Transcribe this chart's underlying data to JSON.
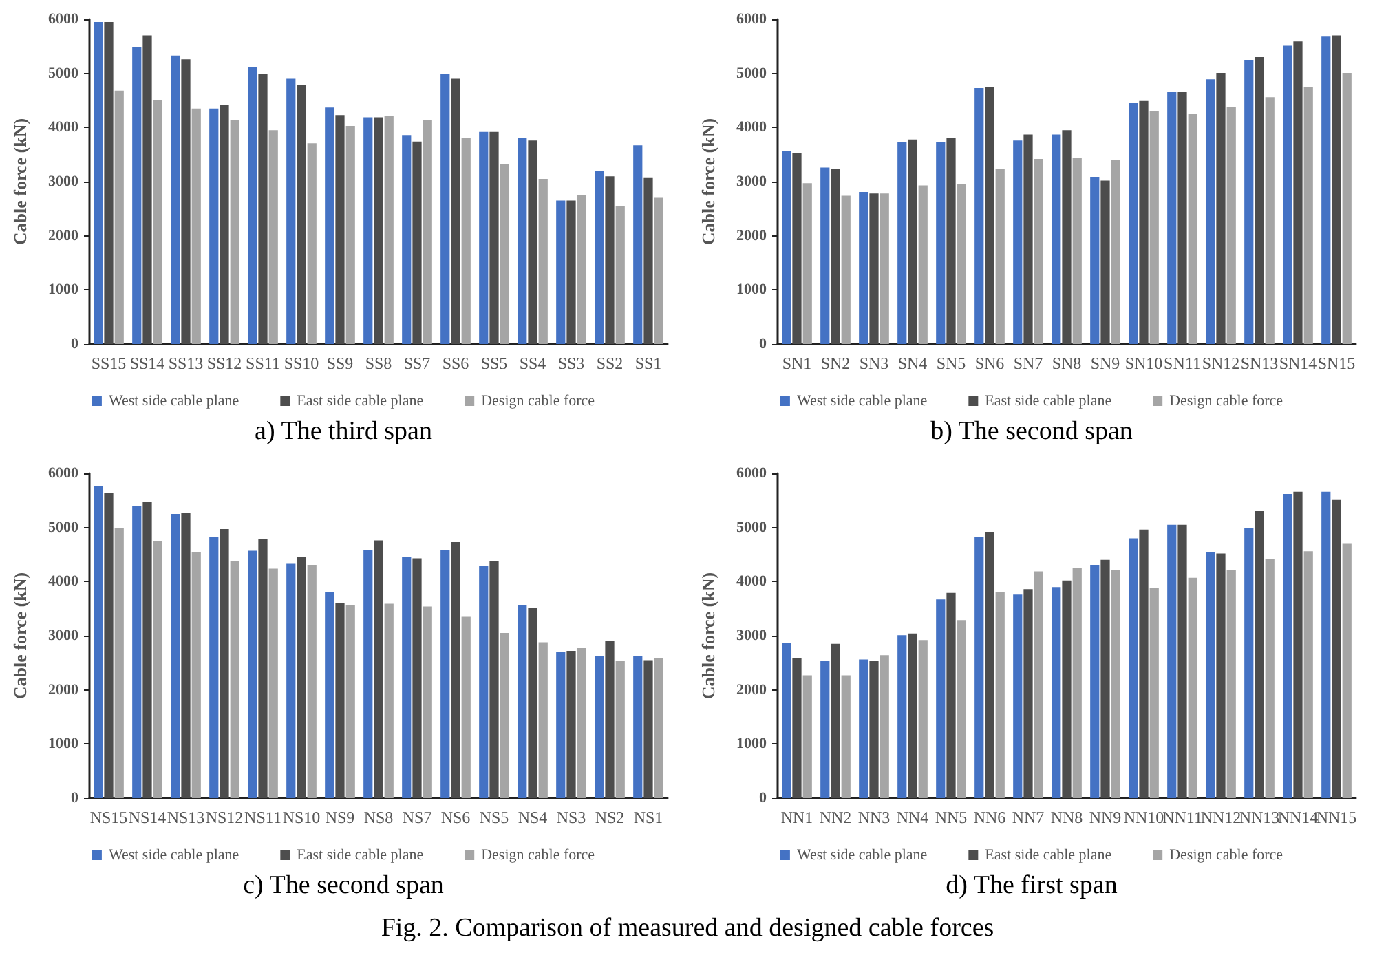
{
  "chart_data": [
    {
      "type": "bar",
      "title": "a) The third span",
      "ylabel": "Cable force (kN)",
      "categories": [
        "SS15",
        "SS14",
        "SS13",
        "SS12",
        "SS11",
        "SS10",
        "SS9",
        "SS8",
        "SS7",
        "SS6",
        "SS5",
        "SS4",
        "SS3",
        "SS2",
        "SS1"
      ],
      "ylim": [
        0,
        6000
      ],
      "yticks": [
        0,
        1000,
        2000,
        3000,
        4000,
        5000,
        6000
      ],
      "legend": "bottom",
      "series": [
        {
          "name": "West side cable plane",
          "color": "#4472c4",
          "values": [
            5950,
            5490,
            5330,
            4350,
            5110,
            4900,
            4370,
            4190,
            3860,
            4990,
            3920,
            3810,
            2650,
            3190,
            3670
          ]
        },
        {
          "name": "East side cable plane",
          "color": "#4d4d4d",
          "values": [
            5950,
            5700,
            5260,
            4420,
            4990,
            4780,
            4230,
            4190,
            3740,
            4900,
            3920,
            3760,
            2650,
            3100,
            3080
          ]
        },
        {
          "name": "Design cable force",
          "color": "#a5a5a5",
          "values": [
            4680,
            4510,
            4350,
            4140,
            3950,
            3710,
            4030,
            4210,
            4140,
            3810,
            3320,
            3050,
            2750,
            2550,
            2700
          ]
        }
      ]
    },
    {
      "type": "bar",
      "title": "b) The second span",
      "ylabel": "Cable force (kN)",
      "categories": [
        "SN1",
        "SN2",
        "SN3",
        "SN4",
        "SN5",
        "SN6",
        "SN7",
        "SN8",
        "SN9",
        "SN10",
        "SN11",
        "SN12",
        "SN13",
        "SN14",
        "SN15"
      ],
      "ylim": [
        0,
        6000
      ],
      "yticks": [
        0,
        1000,
        2000,
        3000,
        4000,
        5000,
        6000
      ],
      "legend": "bottom",
      "series": [
        {
          "name": "West side cable plane",
          "color": "#4472c4",
          "values": [
            3570,
            3260,
            2810,
            3730,
            3730,
            4730,
            3760,
            3870,
            3090,
            4450,
            4660,
            4890,
            5250,
            5510,
            5680
          ]
        },
        {
          "name": "East side cable plane",
          "color": "#4d4d4d",
          "values": [
            3520,
            3230,
            2780,
            3780,
            3800,
            4750,
            3870,
            3950,
            3020,
            4490,
            4660,
            5010,
            5300,
            5590,
            5700
          ]
        },
        {
          "name": "Design cable force",
          "color": "#a5a5a5",
          "values": [
            2970,
            2740,
            2780,
            2930,
            2950,
            3230,
            3420,
            3440,
            3400,
            4300,
            4260,
            4380,
            4560,
            4750,
            5010
          ]
        }
      ]
    },
    {
      "type": "bar",
      "title": "c) The second span",
      "ylabel": "Cable force (kN)",
      "categories": [
        "NS15",
        "NS14",
        "NS13",
        "NS12",
        "NS11",
        "NS10",
        "NS9",
        "NS8",
        "NS7",
        "NS6",
        "NS5",
        "NS4",
        "NS3",
        "NS2",
        "NS1"
      ],
      "ylim": [
        0,
        6000
      ],
      "yticks": [
        0,
        1000,
        2000,
        3000,
        4000,
        5000,
        6000
      ],
      "legend": "bottom",
      "series": [
        {
          "name": "West side cable plane",
          "color": "#4472c4",
          "values": [
            5770,
            5390,
            5250,
            4830,
            4570,
            4340,
            3800,
            4590,
            4450,
            4590,
            4290,
            3560,
            2700,
            2630,
            2630
          ]
        },
        {
          "name": "East side cable plane",
          "color": "#4d4d4d",
          "values": [
            5630,
            5480,
            5270,
            4970,
            4780,
            4450,
            3610,
            4760,
            4430,
            4730,
            4380,
            3520,
            2720,
            2910,
            2550
          ]
        },
        {
          "name": "Design cable force",
          "color": "#a5a5a5",
          "values": [
            4990,
            4740,
            4550,
            4380,
            4240,
            4310,
            3560,
            3590,
            3540,
            3350,
            3050,
            2880,
            2770,
            2530,
            2580
          ]
        }
      ]
    },
    {
      "type": "bar",
      "title": "d) The first span",
      "ylabel": "Cable force (kN)",
      "categories": [
        "NN1",
        "NN2",
        "NN3",
        "NN4",
        "NN5",
        "NN6",
        "NN7",
        "NN8",
        "NN9",
        "NN10",
        "NN11",
        "NN12",
        "NN13",
        "NN14",
        "NN15"
      ],
      "ylim": [
        0,
        6000
      ],
      "yticks": [
        0,
        1000,
        2000,
        3000,
        4000,
        5000,
        6000
      ],
      "legend": "bottom",
      "annotations": [
        "Fig. 2. Comparison of measured and designed cable forces"
      ],
      "series": [
        {
          "name": "West side cable plane",
          "color": "#4472c4",
          "values": [
            2870,
            2530,
            2560,
            3010,
            3670,
            4820,
            3760,
            3900,
            4310,
            4800,
            5050,
            4540,
            4990,
            5620,
            5660
          ]
        },
        {
          "name": "East side cable plane",
          "color": "#4d4d4d",
          "values": [
            2590,
            2850,
            2530,
            3040,
            3790,
            4920,
            3860,
            4020,
            4400,
            4960,
            5050,
            4520,
            5310,
            5660,
            5520
          ]
        },
        {
          "name": "Design cable force",
          "color": "#a5a5a5",
          "values": [
            2270,
            2270,
            2640,
            2920,
            3290,
            3810,
            4190,
            4260,
            4210,
            3880,
            4070,
            4210,
            4420,
            4560,
            4710
          ]
        }
      ]
    }
  ]
}
